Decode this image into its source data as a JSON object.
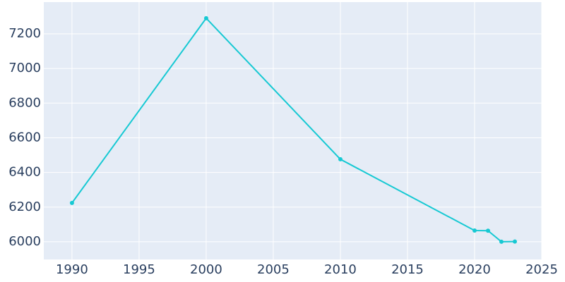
{
  "chart_data": {
    "type": "line",
    "x": [
      1990,
      2000,
      2010,
      2020,
      2021,
      2022,
      2023
    ],
    "series": [
      {
        "color": "#17c9d3",
        "values": [
          6224,
          7290,
          6476,
          6065,
          6064,
          6000,
          6001
        ]
      }
    ],
    "xlim": [
      1987.9,
      2025
    ],
    "xticks": [
      1990,
      1995,
      2000,
      2005,
      2010,
      2015,
      2020,
      2025
    ],
    "ylim": [
      5898,
      7383
    ],
    "yticks": [
      6000,
      6200,
      6400,
      6600,
      6800,
      7000,
      7200
    ],
    "grid": true
  }
}
